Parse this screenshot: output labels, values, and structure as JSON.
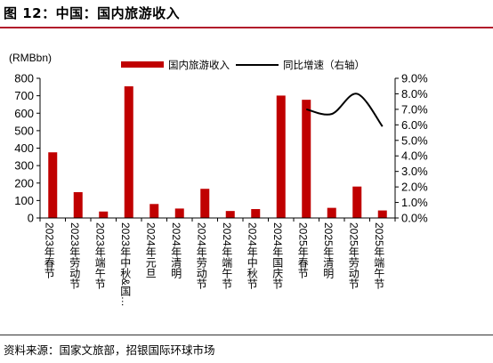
{
  "header": {
    "title": "图 12：中国：国内旅游收入"
  },
  "footer": {
    "source": "资料来源：国家文旅部，招银国际环球市场"
  },
  "chart_data": {
    "type": "bar",
    "ylabel": "(RMBbn)",
    "ylim": [
      0,
      800
    ],
    "yticks": [
      "0",
      "100",
      "200",
      "300",
      "400",
      "500",
      "600",
      "700",
      "800"
    ],
    "y2lim": [
      0,
      9
    ],
    "y2ticks": [
      "0.0%",
      "1.0%",
      "2.0%",
      "3.0%",
      "4.0%",
      "5.0%",
      "6.0%",
      "7.0%",
      "8.0%",
      "9.0%"
    ],
    "categories": [
      "2023年春节",
      "2023年劳动节",
      "2023年端午节",
      "2023年中秋&国…",
      "2024年元旦",
      "2024年清明",
      "2024年劳动节",
      "2024年端午节",
      "2024年中秋节",
      "2024年国庆节",
      "2025年春节",
      "2025年清明",
      "2025年劳动节",
      "2025年端午节"
    ],
    "series": [
      {
        "name": "国内旅游收入",
        "axis": "left",
        "type": "bar",
        "color": "#c00000",
        "values": [
          376,
          148,
          37,
          754,
          80,
          54,
          167,
          40,
          51,
          701,
          677,
          58,
          180,
          43
        ]
      },
      {
        "name": "同比增速（右轴）",
        "axis": "right",
        "type": "line",
        "color": "#000000",
        "values": [
          null,
          null,
          null,
          null,
          null,
          null,
          null,
          null,
          null,
          null,
          7.0,
          6.7,
          8.0,
          5.9
        ]
      }
    ],
    "legend": "top"
  }
}
